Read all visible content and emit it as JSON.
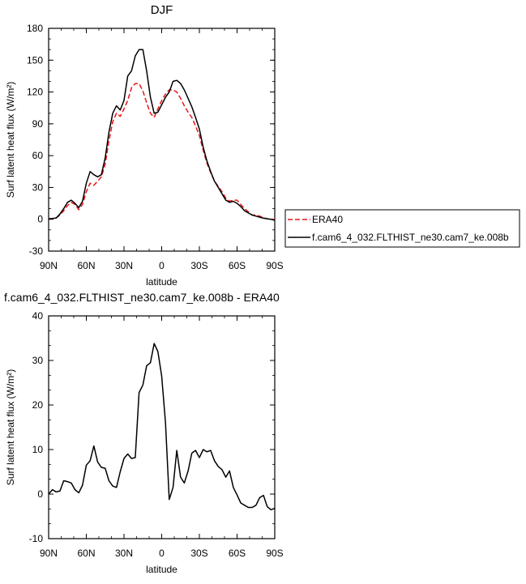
{
  "chart_data": [
    {
      "type": "line",
      "title": "DJF",
      "xlabel": "latitude",
      "ylabel": "Surf latent heat flux (W/m²)",
      "ylim": [
        -30,
        180
      ],
      "xlim": [
        90,
        -90
      ],
      "x_ticks": [
        90,
        60,
        30,
        0,
        -30,
        -60,
        -90
      ],
      "x_tick_labels": [
        "90N",
        "60N",
        "30N",
        "0",
        "30S",
        "60S",
        "90S"
      ],
      "y_ticks": [
        -30,
        0,
        30,
        60,
        90,
        120,
        150,
        180
      ],
      "y_tick_labels": [
        "-30",
        "0",
        "30",
        "60",
        "90",
        "120",
        "150",
        "180"
      ],
      "legend_position": "outside-right",
      "series": [
        {
          "name": "ERA40",
          "color": "#e8141a",
          "dash": "dashed",
          "x": [
            90,
            87,
            84,
            81,
            78,
            75,
            72,
            69,
            66,
            63,
            60,
            57,
            54,
            51,
            48,
            45,
            42,
            39,
            36,
            33,
            30,
            27,
            24,
            21,
            18,
            15,
            12,
            9,
            6,
            3,
            0,
            -3,
            -6,
            -9,
            -12,
            -15,
            -18,
            -21,
            -24,
            -27,
            -30,
            -33,
            -36,
            -39,
            -42,
            -45,
            -48,
            -51,
            -54,
            -57,
            -60,
            -63,
            -66,
            -69,
            -72,
            -75,
            -78,
            -81,
            -84,
            -87,
            -90
          ],
          "values": [
            0.5,
            0.8,
            1.2,
            4,
            8,
            13,
            16,
            14,
            9,
            14,
            26,
            34,
            32,
            36,
            40,
            52,
            74,
            92,
            100,
            97,
            104,
            112,
            124,
            128,
            128,
            121,
            110,
            100,
            96,
            104,
            112,
            118,
            122,
            122,
            120,
            114,
            107,
            101,
            96,
            88,
            79,
            65,
            53,
            44,
            36,
            31,
            26,
            20,
            17,
            18,
            18,
            14,
            10,
            7,
            4,
            4,
            3,
            1.5,
            0.5,
            0,
            0
          ]
        },
        {
          "name": "f.cam6_4_032.FLTHIST_ne30.cam7_ke.008b",
          "color": "#000000",
          "dash": "solid",
          "x": [
            90,
            87,
            84,
            81,
            78,
            75,
            72,
            69,
            66,
            63,
            60,
            57,
            54,
            51,
            48,
            45,
            42,
            39,
            36,
            33,
            30,
            27,
            24,
            21,
            18,
            15,
            12,
            9,
            6,
            3,
            0,
            -3,
            -6,
            -9,
            -12,
            -15,
            -18,
            -21,
            -24,
            -27,
            -30,
            -33,
            -36,
            -39,
            -42,
            -45,
            -48,
            -51,
            -54,
            -57,
            -60,
            -63,
            -66,
            -69,
            -72,
            -75,
            -78,
            -81,
            -84,
            -87,
            -90
          ],
          "values": [
            0.5,
            0.8,
            1.2,
            5,
            10,
            16,
            18,
            15,
            11,
            17,
            34,
            45,
            42,
            40,
            42,
            58,
            82,
            100,
            107,
            103,
            112,
            135,
            140,
            154,
            160,
            160,
            140,
            115,
            100,
            101,
            108,
            115,
            120,
            130,
            131,
            128,
            122,
            114,
            106,
            96,
            85,
            68,
            55,
            45,
            36,
            30,
            24,
            18,
            16,
            17,
            15,
            12,
            8,
            6,
            4,
            3,
            2,
            1,
            0.5,
            0,
            -1
          ]
        }
      ]
    },
    {
      "type": "line",
      "title": "f.cam6_4_032.FLTHIST_ne30.cam7_ke.008b - ERA40",
      "xlabel": "latitude",
      "ylabel": "Surf latent heat flux (W/m²)",
      "ylim": [
        -10,
        40
      ],
      "xlim": [
        90,
        -90
      ],
      "x_ticks": [
        90,
        60,
        30,
        0,
        -30,
        -60,
        -90
      ],
      "x_tick_labels": [
        "90N",
        "60N",
        "30N",
        "0",
        "30S",
        "60S",
        "90S"
      ],
      "y_ticks": [
        -10,
        0,
        10,
        20,
        30,
        40
      ],
      "y_tick_labels": [
        "-10",
        "0",
        "10",
        "20",
        "30",
        "40"
      ],
      "series": [
        {
          "color": "#000000",
          "dash": "solid",
          "x": [
            90,
            87,
            84,
            81,
            78,
            75,
            72,
            69,
            66,
            63,
            60,
            57,
            54,
            51,
            48,
            45,
            42,
            39,
            36,
            33,
            30,
            27,
            24,
            21,
            18,
            15,
            12,
            9,
            6,
            3,
            0,
            -3,
            -6,
            -9,
            -12,
            -15,
            -18,
            -21,
            -24,
            -27,
            -30,
            -33,
            -36,
            -39,
            -42,
            -45,
            -48,
            -51,
            -54,
            -57,
            -60,
            -63,
            -66,
            -69,
            -72,
            -75,
            -78,
            -81,
            -84,
            -87,
            -90
          ],
          "values": [
            0,
            1,
            0.5,
            0.7,
            3,
            2.8,
            2.5,
            1,
            0.3,
            2,
            6.5,
            7.5,
            10.8,
            7.2,
            6,
            5.8,
            3,
            1.8,
            1.5,
            5,
            8,
            9,
            8,
            8.2,
            22.8,
            24.5,
            28.8,
            29.5,
            33.8,
            32,
            26.5,
            16,
            -1.2,
            1.5,
            9.8,
            3.8,
            2.5,
            5.2,
            9.2,
            9.8,
            8.2,
            10,
            9.5,
            9.8,
            7.5,
            6.2,
            5.5,
            3.8,
            5.2,
            1.5,
            -0.2,
            -2,
            -2.5,
            -3,
            -3,
            -2.5,
            -0.8,
            -0.3,
            -2.8,
            -3.5,
            -3.2
          ]
        }
      ]
    }
  ]
}
